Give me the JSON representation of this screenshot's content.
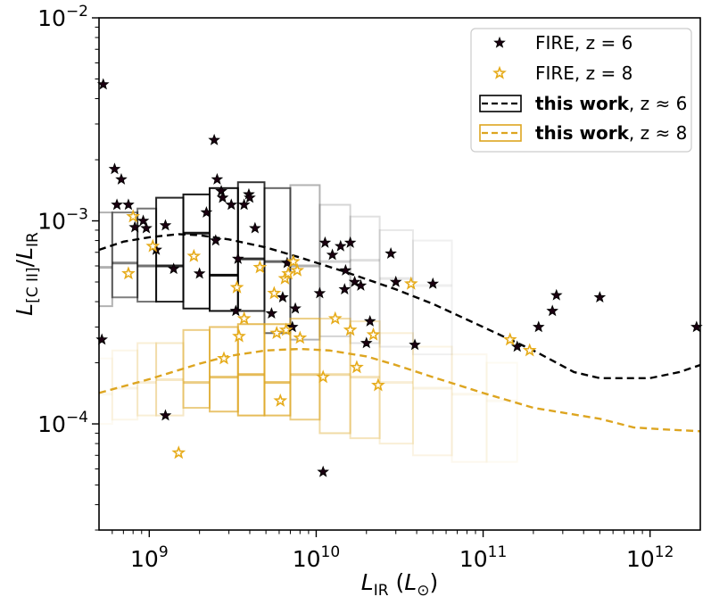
{
  "chart_data": {
    "type": "scatter",
    "x_scale": "log",
    "y_scale": "log",
    "xlim": [
      500000000.0,
      2000000000000.0
    ],
    "ylim": [
      3e-05,
      0.01
    ],
    "xlabel": {
      "base": "L",
      "sub": "IR",
      "paren_open": "(",
      "unit_base": "L",
      "unit_sub": "⊙",
      "paren_close": ")"
    },
    "ylabel": {
      "base": "L",
      "sub1": "[C II]",
      "slash": "/",
      "base2": "L",
      "sub2": "IR"
    },
    "x_ticks": [
      {
        "value": 1000000000.0,
        "base": "10",
        "exp": "9"
      },
      {
        "value": 10000000000.0,
        "base": "10",
        "exp": "10"
      },
      {
        "value": 100000000000.0,
        "base": "10",
        "exp": "11"
      },
      {
        "value": 1000000000000.0,
        "base": "10",
        "exp": "12"
      }
    ],
    "y_ticks": [
      {
        "value": 0.0001,
        "base": "10",
        "exp": "−4"
      },
      {
        "value": 0.001,
        "base": "10",
        "exp": "−3"
      },
      {
        "value": 0.01,
        "base": "10",
        "exp": "−2"
      }
    ],
    "legend": {
      "position": "upper right",
      "entries": [
        {
          "kind": "star",
          "color": "#000000",
          "label": "FIRE, z = 6"
        },
        {
          "kind": "star",
          "color": "#e6ab1a",
          "label": "FIRE, z = 8"
        },
        {
          "kind": "box-dash",
          "color": "#000000",
          "bold": "this work",
          "rest": ", z ≈ 6"
        },
        {
          "kind": "box-dash",
          "color": "#dda520",
          "bold": "this work",
          "rest": ", z ≈ 8"
        }
      ]
    },
    "series": [
      {
        "label_ref": "FIRE, z = 6",
        "marker": "star",
        "color": "#000000",
        "points": [
          [
            530000000.0,
            0.0047
          ],
          [
            520000000.0,
            0.00026
          ],
          [
            620000000.0,
            0.0018
          ],
          [
            680000000.0,
            0.0016
          ],
          [
            640000000.0,
            0.0012
          ],
          [
            750000000.0,
            0.0012
          ],
          [
            820000000.0,
            0.00093
          ],
          [
            920000000.0,
            0.001
          ],
          [
            960000000.0,
            0.00092
          ],
          [
            1100000000.0,
            0.00072
          ],
          [
            1250000000.0,
            0.00095
          ],
          [
            1400000000.0,
            0.00058
          ],
          [
            1250000000.0,
            0.00011
          ],
          [
            2000000000.0,
            0.00055
          ],
          [
            2200000000.0,
            0.0011
          ],
          [
            2450000000.0,
            0.0025
          ],
          [
            2550000000.0,
            0.0016
          ],
          [
            2700000000.0,
            0.0014
          ],
          [
            2750000000.0,
            0.0013
          ],
          [
            3100000000.0,
            0.0012
          ],
          [
            2500000000.0,
            0.0008
          ],
          [
            3400000000.0,
            0.00065
          ],
          [
            3300000000.0,
            0.00036
          ],
          [
            3700000000.0,
            0.0012
          ],
          [
            3950000000.0,
            0.00135
          ],
          [
            4000000000.0,
            0.0013
          ],
          [
            4300000000.0,
            0.00092
          ],
          [
            5400000000.0,
            0.00035
          ],
          [
            6300000000.0,
            0.00042
          ],
          [
            6700000000.0,
            0.00062
          ],
          [
            7200000000.0,
            0.0003
          ],
          [
            7500000000.0,
            0.00037
          ],
          [
            10500000000.0,
            0.00044
          ],
          [
            11000000000.0,
            5.8e-05
          ],
          [
            11300000000.0,
            0.00078
          ],
          [
            12500000000.0,
            0.00068
          ],
          [
            14000000000.0,
            0.00075
          ],
          [
            14800000000.0,
            0.00046
          ],
          [
            15000000000.0,
            0.00057
          ],
          [
            16000000000.0,
            0.00078
          ],
          [
            17000000000.0,
            0.0005
          ],
          [
            18500000000.0,
            0.00048
          ],
          [
            21000000000.0,
            0.00032
          ],
          [
            20000000000.0,
            0.00025
          ],
          [
            28000000000.0,
            0.00069
          ],
          [
            30000000000.0,
            0.0005
          ],
          [
            39000000000.0,
            0.000245
          ],
          [
            50000000000.0,
            0.00049
          ],
          [
            160000000000.0,
            0.00024
          ],
          [
            215000000000.0,
            0.0003
          ],
          [
            260000000000.0,
            0.00036
          ],
          [
            275000000000.0,
            0.00043
          ],
          [
            500000000000.0,
            0.00042
          ],
          [
            1900000000000.0,
            0.0003
          ]
        ]
      },
      {
        "label_ref": "FIRE, z = 8",
        "marker": "star",
        "color": "#e6ab1a",
        "points": [
          [
            750000000.0,
            0.00055
          ],
          [
            800000000.0,
            0.00105
          ],
          [
            1050000000.0,
            0.00075
          ],
          [
            1500000000.0,
            7.2e-05
          ],
          [
            1850000000.0,
            0.00067
          ],
          [
            2800000000.0,
            0.00021
          ],
          [
            3350000000.0,
            0.00047
          ],
          [
            3450000000.0,
            0.00027
          ],
          [
            3700000000.0,
            0.00033
          ],
          [
            4600000000.0,
            0.00059
          ],
          [
            5600000000.0,
            0.00044
          ],
          [
            5800000000.0,
            0.00028
          ],
          [
            6100000000.0,
            0.00013
          ],
          [
            6500000000.0,
            0.00052
          ],
          [
            6600000000.0,
            0.00029
          ],
          [
            6800000000.0,
            0.00055
          ],
          [
            7300000000.0,
            0.00063
          ],
          [
            7700000000.0,
            0.00057
          ],
          [
            8000000000.0,
            0.000265
          ],
          [
            11000000000.0,
            0.00017
          ],
          [
            13000000000.0,
            0.00033
          ],
          [
            16000000000.0,
            0.00029
          ],
          [
            17500000000.0,
            0.00019
          ],
          [
            22000000000.0,
            0.000275
          ],
          [
            23500000000.0,
            0.000155
          ],
          [
            37000000000.0,
            0.00049
          ],
          [
            145000000000.0,
            0.00026
          ],
          [
            190000000000.0,
            0.00023
          ]
        ]
      }
    ],
    "curves": [
      {
        "label_ref": "this work, z ≈ 6",
        "color": "#000000",
        "style": "dashed",
        "points": [
          [
            500000000.0,
            0.00072
          ],
          [
            700000000.0,
            0.00079
          ],
          [
            1000000000.0,
            0.00083
          ],
          [
            1500000000.0,
            0.00086
          ],
          [
            2000000000.0,
            0.00085
          ],
          [
            3000000000.0,
            0.00081
          ],
          [
            5000000000.0,
            0.00074
          ],
          [
            8000000000.0,
            0.00066
          ],
          [
            15000000000.0,
            0.00056
          ],
          [
            30000000000.0,
            0.00046
          ],
          [
            50000000000.0,
            0.00039
          ],
          [
            100000000000.0,
            0.0003
          ],
          [
            200000000000.0,
            0.00023
          ],
          [
            350000000000.0,
            0.00018
          ],
          [
            500000000000.0,
            0.000168
          ],
          [
            1000000000000.0,
            0.000168
          ],
          [
            1500000000000.0,
            0.00018
          ],
          [
            2000000000000.0,
            0.000195
          ]
        ]
      },
      {
        "label_ref": "this work, z ≈ 8",
        "color": "#dda520",
        "style": "dashed",
        "points": [
          [
            500000000.0,
            0.000142
          ],
          [
            1000000000.0,
            0.000166
          ],
          [
            2000000000.0,
            0.000198
          ],
          [
            3000000000.0,
            0.000216
          ],
          [
            5000000000.0,
            0.00023
          ],
          [
            8000000000.0,
            0.000234
          ],
          [
            12000000000.0,
            0.00023
          ],
          [
            20000000000.0,
            0.000215
          ],
          [
            30000000000.0,
            0.000195
          ],
          [
            50000000000.0,
            0.00017
          ],
          [
            100000000000.0,
            0.000142
          ],
          [
            200000000000.0,
            0.00012
          ],
          [
            500000000000.0,
            0.000106
          ],
          [
            800000000000.0,
            9.6e-05
          ],
          [
            1200000000000.0,
            9.4e-05
          ],
          [
            2000000000000.0,
            9.2e-05
          ]
        ]
      }
    ],
    "bins": [
      {
        "label_ref": "this work, z ≈ 6",
        "color": "#000000",
        "boxes": [
          [
            400000000.0,
            600000000.0,
            0.00038,
            0.0011,
            0.3,
            0.00059
          ],
          [
            600000000.0,
            850000000.0,
            0.00042,
            0.0011,
            0.5,
            0.00062
          ],
          [
            850000000.0,
            1100000000.0,
            0.0004,
            0.00115,
            0.55,
            0.0006
          ],
          [
            1100000000.0,
            1600000000.0,
            0.0004,
            0.0013,
            0.85,
            0.0006
          ],
          [
            1600000000.0,
            2300000000.0,
            0.00037,
            0.00135,
            0.9,
            0.00087
          ],
          [
            2300000000.0,
            3400000000.0,
            0.00036,
            0.00145,
            0.95,
            0.00054
          ],
          [
            3400000000.0,
            4900000000.0,
            0.00036,
            0.00155,
            0.8,
            0.00065
          ],
          [
            4900000000.0,
            7000000000.0,
            0.00028,
            0.00145,
            0.6,
            0.00063
          ],
          [
            7000000000.0,
            10500000000.0,
            0.00026,
            0.0015,
            0.3,
            0.0006
          ],
          [
            10500000000.0,
            16000000000.0,
            0.00027,
            0.0012,
            0.17,
            0.00063
          ],
          [
            16000000000.0,
            24000000000.0,
            0.00025,
            0.00105,
            0.12,
            0.00064
          ],
          [
            24000000000.0,
            38000000000.0,
            0.00024,
            0.0009,
            0.09,
            0.00052
          ],
          [
            38000000000.0,
            65000000000.0,
            0.00022,
            0.0008,
            0.06,
            0.00048
          ]
        ]
      },
      {
        "label_ref": "this work, z ≈ 8",
        "color": "#dda520",
        "boxes": [
          [
            400000000.0,
            600000000.0,
            0.0001,
            0.00021,
            0.06,
            0.00014
          ],
          [
            600000000.0,
            850000000.0,
            0.000105,
            0.00023,
            0.1,
            0.00015
          ],
          [
            850000000.0,
            1100000000.0,
            0.00011,
            0.00025,
            0.18,
            0.00016
          ],
          [
            1100000000.0,
            1600000000.0,
            0.00011,
            0.00025,
            0.25,
            0.000165
          ],
          [
            1600000000.0,
            2300000000.0,
            0.00012,
            0.00029,
            0.55,
            0.00016
          ],
          [
            2300000000.0,
            3400000000.0,
            0.000115,
            0.0003,
            0.65,
            0.00017
          ],
          [
            3400000000.0,
            4900000000.0,
            0.00011,
            0.00031,
            0.75,
            0.000175
          ],
          [
            4900000000.0,
            7000000000.0,
            0.00011,
            0.00031,
            0.7,
            0.00016
          ],
          [
            7000000000.0,
            10500000000.0,
            0.000105,
            0.00033,
            0.55,
            0.000175
          ],
          [
            10500000000.0,
            16000000000.0,
            9e-05,
            0.00033,
            0.4,
            0.000175
          ],
          [
            16000000000.0,
            24000000000.0,
            8.5e-05,
            0.00032,
            0.3,
            0.00017
          ],
          [
            24000000000.0,
            38000000000.0,
            8e-05,
            0.00028,
            0.18,
            0.00016
          ],
          [
            38000000000.0,
            65000000000.0,
            7e-05,
            0.00024,
            0.12,
            0.00015
          ],
          [
            65000000000.0,
            105000000000.0,
            6.5e-05,
            0.00022,
            0.08,
            0.00014
          ],
          [
            105000000000.0,
            160000000000.0,
            6.5e-05,
            0.0002,
            0.06,
            0.00013
          ]
        ]
      }
    ]
  }
}
